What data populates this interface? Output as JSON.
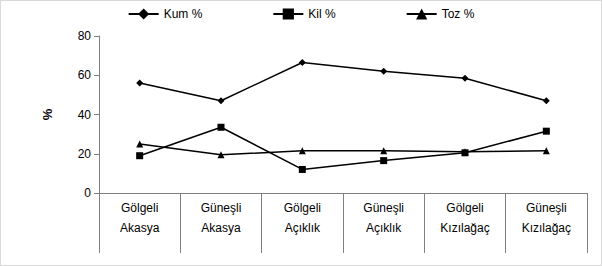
{
  "chart_data": {
    "type": "line",
    "y_label": "%",
    "categories": [
      "Gölgeli Akasya",
      "Güneşli Akasya",
      "Gölgeli Açıklık",
      "Güneşli Açıklık",
      "Gölgeli Kızılağaç",
      "Güneşli Kızılağaç"
    ],
    "series": [
      {
        "name": "Kum %",
        "color": "#000000",
        "marker": "diamond",
        "values": [
          56,
          47,
          66.5,
          62,
          58.5,
          47
        ]
      },
      {
        "name": "Kil %",
        "color": "#000000",
        "marker": "square",
        "values": [
          19,
          33.5,
          12,
          16.5,
          20.5,
          31.5
        ]
      },
      {
        "name": "Toz %",
        "color": "#000000",
        "marker": "triangle",
        "values": [
          25,
          19.5,
          21.5,
          21.5,
          21,
          21.5
        ]
      }
    ],
    "ylim": [
      0,
      80
    ],
    "yticks": [
      0,
      20,
      40,
      60,
      80
    ],
    "grid": false,
    "legend": "top"
  }
}
